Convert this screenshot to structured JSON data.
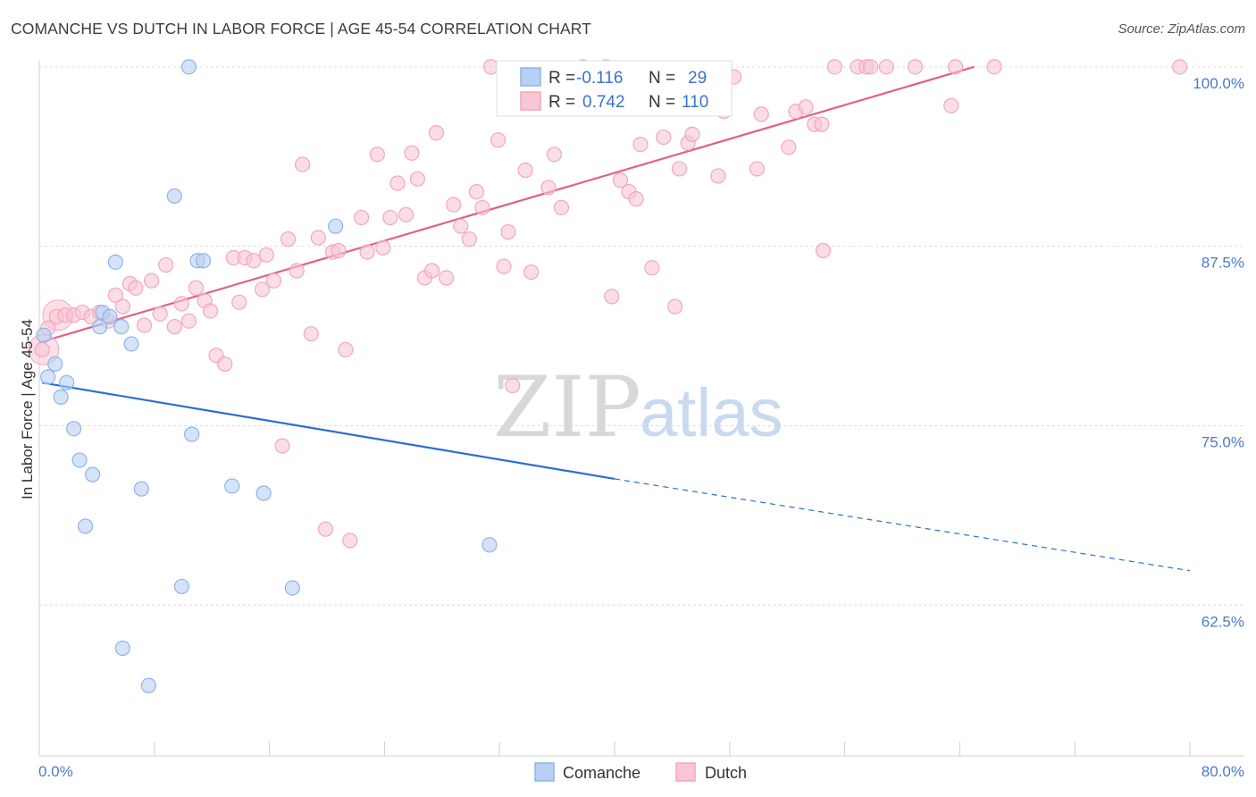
{
  "title": "COMANCHE VS DUTCH IN LABOR FORCE | AGE 45-54 CORRELATION CHART",
  "source": "Source: ZipAtlas.com",
  "watermark": {
    "zip": "ZIP",
    "atlas": "atlas"
  },
  "chart_data": {
    "type": "scatter",
    "ylabel": "In Labor Force | Age 45-54",
    "xlim": [
      0,
      80
    ],
    "ylim": [
      52,
      100.8
    ],
    "x_tick_labels": {
      "left": "0.0%",
      "right": "80.0%"
    },
    "y_ticks": [
      {
        "value": 100,
        "label": "100.0%"
      },
      {
        "value": 87.5,
        "label": "87.5%"
      },
      {
        "value": 75,
        "label": "75.0%"
      },
      {
        "value": 62.5,
        "label": "62.5%"
      }
    ],
    "legend": {
      "rows": [
        {
          "r_label": "R =",
          "r_value": "-0.116",
          "n_label": "N =",
          "n_value": "29"
        },
        {
          "r_label": "R =",
          "r_value": "0.742",
          "n_label": "N =",
          "n_value": "110"
        }
      ]
    },
    "series": [
      {
        "name": "Comanche",
        "color": "#8fb4e8",
        "fill": "#b7d0f3",
        "line_color": "#2a6fd1",
        "trend": {
          "x0": 0.2,
          "y0": 78.0,
          "x1": 40.0,
          "y1": 71.3,
          "x_dash_end": 80.0,
          "y_dash_end": 64.9
        },
        "points": [
          [
            0.3,
            81.3
          ],
          [
            0.6,
            78.4
          ],
          [
            1.1,
            79.3
          ],
          [
            1.5,
            77.0
          ],
          [
            1.9,
            78.0
          ],
          [
            2.4,
            74.8
          ],
          [
            2.8,
            72.6
          ],
          [
            3.2,
            68.0
          ],
          [
            3.7,
            71.6
          ],
          [
            4.2,
            81.9
          ],
          [
            4.4,
            82.9
          ],
          [
            4.9,
            82.6
          ],
          [
            5.3,
            86.4
          ],
          [
            5.7,
            81.9
          ],
          [
            5.8,
            59.5
          ],
          [
            6.4,
            80.7
          ],
          [
            7.1,
            70.6
          ],
          [
            7.6,
            56.9
          ],
          [
            9.4,
            91.0
          ],
          [
            9.9,
            63.8
          ],
          [
            10.4,
            100.0
          ],
          [
            10.6,
            74.4
          ],
          [
            11.0,
            86.5
          ],
          [
            11.4,
            86.5
          ],
          [
            13.4,
            70.8
          ],
          [
            15.6,
            70.3
          ],
          [
            17.6,
            63.7
          ],
          [
            20.6,
            88.9
          ],
          [
            31.3,
            66.7
          ]
        ]
      },
      {
        "name": "Dutch",
        "color": "#f2a7bd",
        "fill": "#f8c6d4",
        "line_color": "#e0608c",
        "trend": {
          "x0": 0.0,
          "y0": 80.8,
          "x1": 65.0,
          "y1": 100.0
        },
        "points": [
          [
            0.2,
            80.3
          ],
          [
            0.6,
            81.8
          ],
          [
            1.2,
            82.6
          ],
          [
            1.8,
            82.7
          ],
          [
            2.4,
            82.7
          ],
          [
            3.0,
            82.9
          ],
          [
            3.6,
            82.6
          ],
          [
            4.2,
            82.9
          ],
          [
            4.8,
            82.3
          ],
          [
            5.3,
            84.1
          ],
          [
            5.8,
            83.3
          ],
          [
            6.3,
            84.9
          ],
          [
            6.7,
            84.6
          ],
          [
            7.3,
            82.0
          ],
          [
            7.8,
            85.1
          ],
          [
            8.4,
            82.8
          ],
          [
            8.8,
            86.2
          ],
          [
            9.4,
            81.9
          ],
          [
            9.9,
            83.5
          ],
          [
            10.4,
            82.3
          ],
          [
            10.9,
            84.6
          ],
          [
            11.5,
            83.7
          ],
          [
            11.9,
            83.0
          ],
          [
            12.3,
            79.9
          ],
          [
            12.9,
            79.3
          ],
          [
            13.5,
            86.7
          ],
          [
            13.9,
            83.6
          ],
          [
            14.3,
            86.7
          ],
          [
            14.9,
            86.5
          ],
          [
            15.5,
            84.5
          ],
          [
            15.8,
            86.9
          ],
          [
            16.3,
            85.1
          ],
          [
            16.9,
            73.6
          ],
          [
            17.3,
            88.0
          ],
          [
            17.9,
            85.8
          ],
          [
            18.3,
            93.2
          ],
          [
            18.9,
            81.4
          ],
          [
            19.4,
            88.1
          ],
          [
            19.9,
            67.8
          ],
          [
            20.4,
            87.1
          ],
          [
            20.8,
            87.2
          ],
          [
            21.3,
            80.3
          ],
          [
            21.6,
            67.0
          ],
          [
            22.4,
            89.5
          ],
          [
            22.8,
            87.1
          ],
          [
            23.5,
            93.9
          ],
          [
            23.9,
            87.4
          ],
          [
            24.4,
            89.5
          ],
          [
            24.9,
            91.9
          ],
          [
            25.5,
            89.7
          ],
          [
            25.9,
            94.0
          ],
          [
            26.3,
            92.2
          ],
          [
            26.8,
            85.3
          ],
          [
            27.3,
            85.8
          ],
          [
            27.6,
            95.4
          ],
          [
            28.3,
            85.3
          ],
          [
            28.8,
            90.4
          ],
          [
            29.3,
            88.9
          ],
          [
            29.9,
            88.0
          ],
          [
            30.4,
            91.3
          ],
          [
            30.8,
            90.2
          ],
          [
            31.4,
            100.0
          ],
          [
            31.9,
            94.9
          ],
          [
            32.3,
            86.1
          ],
          [
            32.6,
            88.5
          ],
          [
            32.9,
            77.8
          ],
          [
            33.8,
            92.8
          ],
          [
            34.2,
            85.7
          ],
          [
            35.4,
            91.6
          ],
          [
            35.8,
            93.9
          ],
          [
            36.3,
            90.2
          ],
          [
            37.8,
            100.0
          ],
          [
            39.4,
            100.0
          ],
          [
            39.8,
            84.0
          ],
          [
            40.1,
            99.1
          ],
          [
            40.4,
            92.1
          ],
          [
            41.0,
            91.3
          ],
          [
            41.5,
            90.8
          ],
          [
            41.8,
            94.6
          ],
          [
            42.6,
            86.0
          ],
          [
            43.4,
            95.1
          ],
          [
            44.2,
            83.3
          ],
          [
            44.5,
            92.9
          ],
          [
            45.1,
            94.7
          ],
          [
            45.4,
            95.3
          ],
          [
            47.2,
            92.4
          ],
          [
            47.6,
            96.9
          ],
          [
            48.3,
            99.3
          ],
          [
            49.9,
            92.9
          ],
          [
            50.2,
            96.7
          ],
          [
            52.1,
            94.4
          ],
          [
            52.6,
            96.9
          ],
          [
            53.3,
            97.2
          ],
          [
            53.9,
            96.0
          ],
          [
            54.4,
            96.0
          ],
          [
            54.5,
            87.2
          ],
          [
            55.3,
            100.0
          ],
          [
            56.9,
            100.0
          ],
          [
            57.5,
            100.0
          ],
          [
            57.8,
            100.0
          ],
          [
            58.9,
            100.0
          ],
          [
            60.9,
            100.0
          ],
          [
            63.4,
            97.3
          ],
          [
            63.7,
            100.0
          ],
          [
            66.4,
            100.0
          ],
          [
            79.3,
            100.0
          ]
        ],
        "big_points": [
          [
            0.3,
            80.3
          ],
          [
            1.3,
            82.7
          ]
        ]
      }
    ]
  },
  "bottom_legend": [
    "Comanche",
    "Dutch"
  ]
}
